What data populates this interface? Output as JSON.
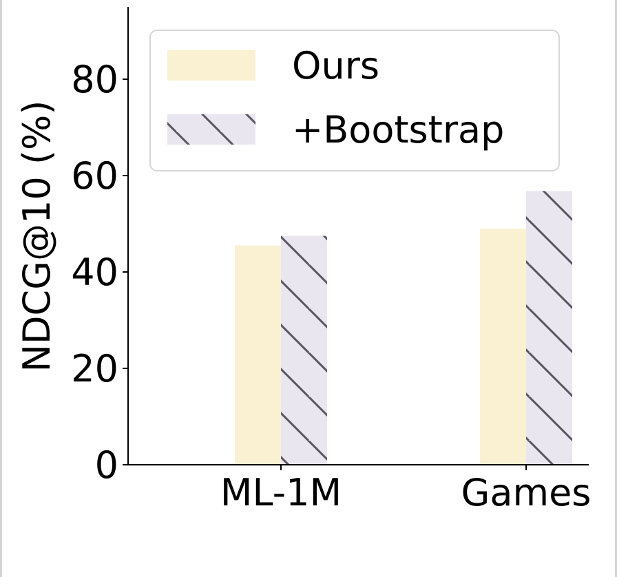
{
  "chart_data": {
    "type": "bar",
    "categories": [
      "ML-1M",
      "Games"
    ],
    "series": [
      {
        "name": "Ours",
        "values": [
          45.5,
          49.0
        ],
        "color": "#faf1d3",
        "hatch": false
      },
      {
        "name": "+Bootstrap",
        "values": [
          47.5,
          56.8
        ],
        "color": "#eae6f0",
        "hatch": true,
        "hatch_color": "#5a5560"
      }
    ],
    "xlabel": "",
    "ylabel": "NDCG@10 (%)",
    "ylim": [
      0,
      95
    ],
    "yticks": [
      0,
      20,
      40,
      60,
      80
    ],
    "grid": false,
    "legend_position": "top-left"
  }
}
